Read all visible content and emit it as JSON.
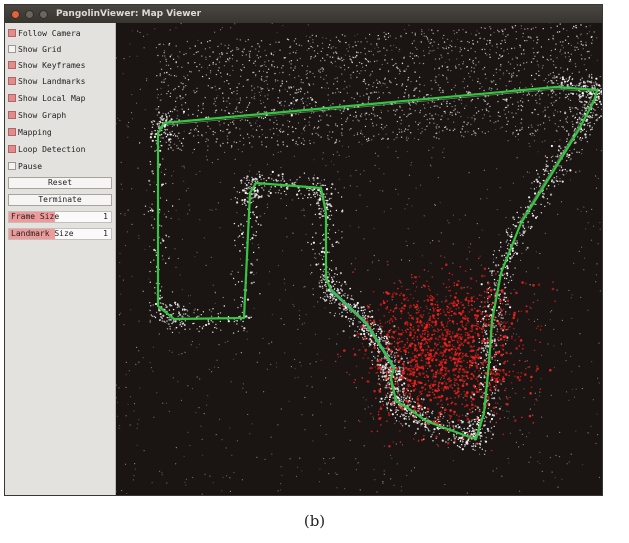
{
  "window": {
    "title": "PangolinViewer: Map Viewer"
  },
  "panel": {
    "checkboxes": [
      {
        "label": "Follow Camera",
        "checked": true
      },
      {
        "label": "Show Grid",
        "checked": false
      },
      {
        "label": "Show Keyframes",
        "checked": true
      },
      {
        "label": "Show Landmarks",
        "checked": true
      },
      {
        "label": "Show Local Map",
        "checked": true
      },
      {
        "label": "Show Graph",
        "checked": true
      },
      {
        "label": "Mapping",
        "checked": true
      },
      {
        "label": "Loop Detection",
        "checked": true
      },
      {
        "label": "Pause",
        "checked": false
      }
    ],
    "buttons": {
      "reset": "Reset",
      "terminate": "Terminate"
    },
    "variables": [
      {
        "label": "Frame Size",
        "value": "1",
        "fill": 0.45
      },
      {
        "label": "Landmark Size",
        "value": "1",
        "fill": 0.45
      }
    ]
  },
  "colors": {
    "background": "#1a1512",
    "points": "#ffffff",
    "local_map": "#ff2020",
    "trajectory": "#36c442",
    "trajectory_alt": "#6a8cc0"
  },
  "caption": "(b)"
}
